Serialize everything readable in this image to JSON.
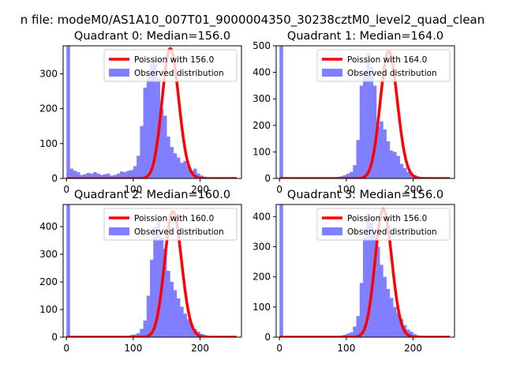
{
  "figure": {
    "suptitle": "n file: modeM0/AS1A10_007T01_9000004350_30238cztM0_level2_quad_clean"
  },
  "chart_data": [
    {
      "type": "bar",
      "title": "Quadrant 0: Median=156.0",
      "xlim": [
        -5,
        262
      ],
      "ylim": [
        0,
        380
      ],
      "xticks": [
        0,
        100,
        200
      ],
      "yticks": [
        0,
        100,
        200,
        300
      ],
      "bin_width": 5,
      "bins_start": 0,
      "hist_color": "#7f7fff",
      "fit_color": "#ff0000",
      "poisson_mean": 156.0,
      "poisson_peak": 372,
      "legend": {
        "position": "top-right",
        "fit_label": "Poission with 156.0",
        "hist_label": "Observed distribution"
      },
      "values": [
        380,
        28,
        22,
        18,
        10,
        12,
        16,
        14,
        18,
        14,
        10,
        12,
        14,
        8,
        10,
        14,
        20,
        18,
        22,
        24,
        35,
        65,
        150,
        260,
        300,
        330,
        350,
        290,
        200,
        180,
        120,
        90,
        72,
        60,
        45,
        50,
        35,
        22,
        28,
        14,
        8,
        5,
        3,
        2,
        1,
        1,
        0,
        0,
        0,
        0,
        0,
        0
      ]
    },
    {
      "type": "bar",
      "title": "Quadrant 1: Median=164.0",
      "xlim": [
        -5,
        262
      ],
      "ylim": [
        0,
        500
      ],
      "xticks": [
        0,
        100,
        200
      ],
      "yticks": [
        0,
        100,
        200,
        300,
        400,
        500
      ],
      "bin_width": 5,
      "bins_start": 0,
      "hist_color": "#7f7fff",
      "fit_color": "#ff0000",
      "poisson_mean": 164.0,
      "poisson_peak": 480,
      "legend": {
        "position": "top-right",
        "fit_label": "Poission with 164.0",
        "hist_label": "Observed distribution"
      },
      "values": [
        500,
        2,
        1,
        1,
        1,
        1,
        1,
        1,
        1,
        1,
        1,
        1,
        2,
        2,
        2,
        2,
        4,
        6,
        8,
        12,
        18,
        25,
        50,
        145,
        350,
        400,
        470,
        420,
        350,
        195,
        215,
        185,
        140,
        105,
        100,
        85,
        55,
        40,
        25,
        15,
        12,
        8,
        4,
        2,
        1,
        1,
        0,
        0,
        0,
        0,
        0,
        0
      ]
    },
    {
      "type": "bar",
      "title": "Quadrant 2: Median=160.0",
      "xlim": [
        -5,
        262
      ],
      "ylim": [
        0,
        480
      ],
      "xticks": [
        0,
        100,
        200
      ],
      "yticks": [
        0,
        100,
        200,
        300,
        400
      ],
      "bin_width": 5,
      "bins_start": 0,
      "hist_color": "#7f7fff",
      "fit_color": "#ff0000",
      "poisson_mean": 160.0,
      "poisson_peak": 455,
      "legend": {
        "position": "top-right",
        "fit_label": "Poission with 160.0",
        "hist_label": "Observed distribution"
      },
      "values": [
        480,
        1,
        1,
        1,
        1,
        1,
        1,
        1,
        1,
        1,
        1,
        1,
        2,
        2,
        2,
        2,
        3,
        4,
        5,
        8,
        10,
        14,
        30,
        60,
        150,
        280,
        400,
        420,
        360,
        320,
        240,
        200,
        170,
        140,
        110,
        85,
        65,
        45,
        30,
        20,
        12,
        8,
        4,
        2,
        1,
        1,
        0,
        0,
        0,
        0,
        0,
        0
      ]
    },
    {
      "type": "bar",
      "title": "Quadrant 3: Median=156.0",
      "xlim": [
        -5,
        262
      ],
      "ylim": [
        0,
        440
      ],
      "xticks": [
        0,
        100,
        200
      ],
      "yticks": [
        0,
        100,
        200,
        300,
        400
      ],
      "bin_width": 5,
      "bins_start": 0,
      "hist_color": "#7f7fff",
      "fit_color": "#ff0000",
      "poisson_mean": 156.0,
      "poisson_peak": 425,
      "legend": {
        "position": "top-right",
        "fit_label": "Poission with 156.0",
        "hist_label": "Observed distribution"
      },
      "values": [
        440,
        1,
        1,
        1,
        1,
        1,
        1,
        1,
        1,
        1,
        1,
        1,
        2,
        2,
        2,
        2,
        3,
        4,
        5,
        8,
        12,
        16,
        35,
        70,
        180,
        330,
        410,
        380,
        340,
        300,
        240,
        200,
        160,
        130,
        100,
        80,
        60,
        40,
        25,
        18,
        10,
        6,
        3,
        2,
        1,
        1,
        0,
        0,
        0,
        0,
        0,
        0
      ]
    }
  ]
}
